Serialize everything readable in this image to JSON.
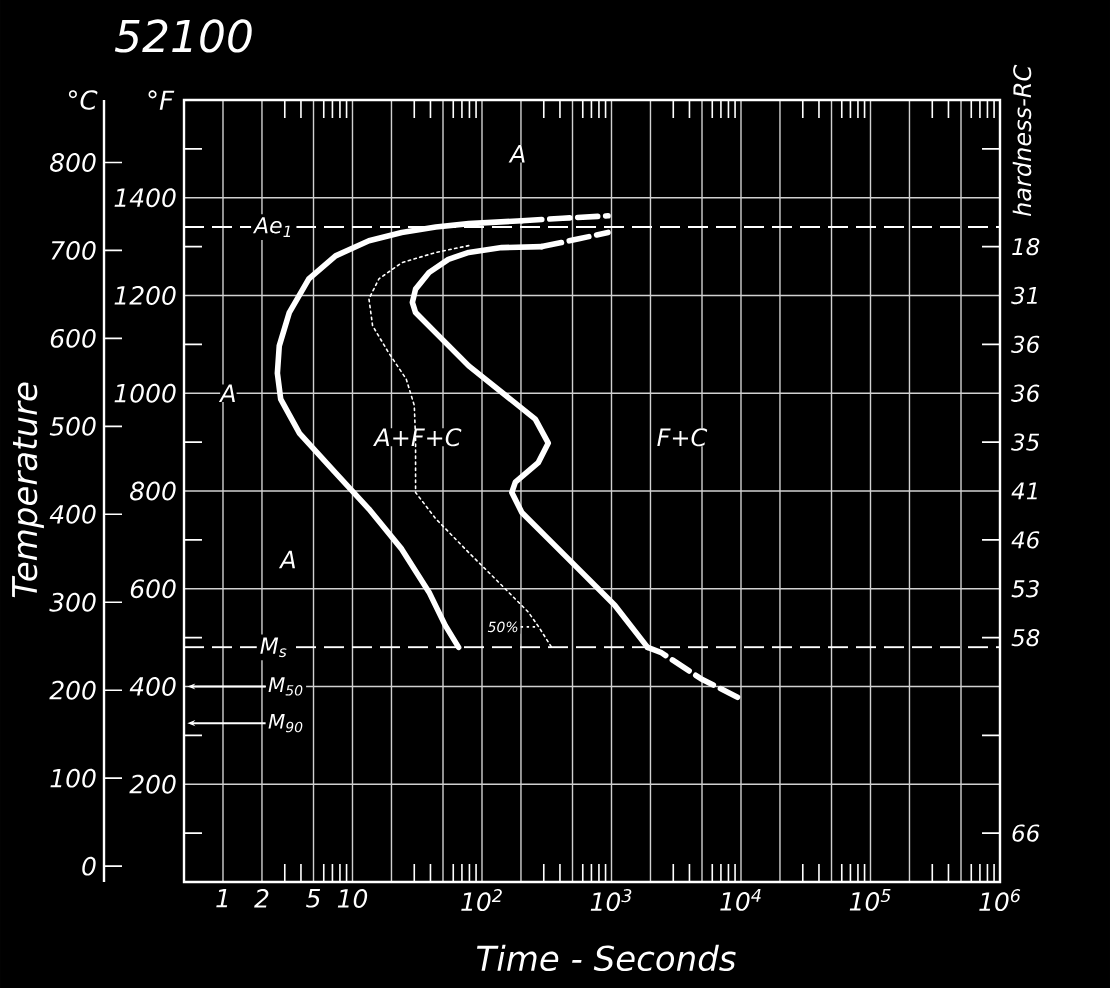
{
  "chart_data": {
    "type": "line",
    "title": "52100",
    "xlabel": "Time - Seconds",
    "ylabel": "Temperature",
    "y2label": "hardness-RC",
    "y3label": "°C",
    "log": "x",
    "grid": true,
    "xlim": [
      0.5,
      1000000
    ],
    "ylim": [
      0,
      1600
    ],
    "y3lim": [
      -18,
      871
    ],
    "xticks": [
      1,
      2,
      5,
      10,
      {
        "value": 20,
        "label": null
      },
      {
        "value": 50,
        "label": null
      },
      {
        "value": 100,
        "label": "10$^{2}$"
      },
      {
        "value": 200,
        "label": null
      },
      {
        "value": 500,
        "label": null
      },
      {
        "value": 1000,
        "label": "10$^{3}$"
      },
      {
        "value": 2000,
        "label": null
      },
      {
        "value": 5000,
        "label": null
      },
      {
        "value": 10000,
        "label": "10$^{4}$"
      },
      {
        "value": 20000,
        "label": null
      },
      {
        "value": 50000,
        "label": null
      },
      {
        "value": 100000,
        "label": "10$^{5}$"
      },
      {
        "value": 200000,
        "label": null
      },
      {
        "value": 500000,
        "label": null
      },
      {
        "value": 1000000,
        "label": "10$^{6}$"
      }
    ],
    "yticks": [
      {
        "value": 0,
        "label": null
      },
      200,
      400,
      600,
      800,
      1000,
      1200,
      1400,
      {
        "value": 1600,
        "label": null
      }
    ],
    "y3ticks": [
      0,
      100,
      200,
      300,
      400,
      500,
      600,
      700,
      800
    ],
    "y2_categories": [
      null,
      null,
      null,
      "18",
      "31",
      "36",
      "36",
      "35",
      "41",
      "46",
      "53",
      "58",
      null,
      null,
      null,
      "66",
      null
    ],
    "series": [
      {
        "color": "#ffffff",
        "line_style": "solid",
        "x": [
          203,
          79,
          44,
          24,
          13.4,
          7.4,
          4.6,
          3.25,
          2.72,
          2.63,
          2.79,
          3.9,
          7.4,
          13.4,
          24,
          39,
          52,
          66
        ],
        "values": [
          1353,
          1347,
          1340,
          1329,
          1312,
          1281,
          1234,
          1165,
          1097,
          1041,
          988,
          918,
          837,
          763,
          681,
          593,
          525,
          480
        ]
      },
      {
        "color": "#ffffff",
        "line_style": "dashed",
        "x": [
          203,
          420,
          940
        ],
        "values": [
          1353,
          1358,
          1363
        ]
      },
      {
        "color": "#ffffff",
        "line_style": "dashed",
        "x": [
          290,
          560,
          940
        ],
        "values": [
          1300,
          1316,
          1329
        ]
      },
      {
        "color": "#ffffff",
        "line_style": "solid",
        "x": [
          290,
          142,
          79,
          55,
          39,
          30.7,
          29,
          30.7,
          43.8,
          79,
          142,
          258,
          325,
          272,
          181,
          170,
          203,
          325,
          588,
          1060,
          1900
        ],
        "values": [
          1300,
          1298,
          1288,
          1274,
          1247,
          1213,
          1186,
          1165,
          1124,
          1056,
          1002,
          947,
          898,
          858,
          818,
          797,
          756,
          702,
          634,
          566,
          480
        ]
      },
      {
        "color": "#ffffff",
        "line_style": "dashed",
        "x": [
          1900,
          2400,
          4900,
          9400
        ],
        "values": [
          480,
          470,
          416,
          378
        ]
      },
      {
        "name": "50%",
        "color": "#ffffff",
        "line_style": "dotted",
        "x": [
          79,
          44,
          24,
          16,
          13.4,
          14.3,
          19,
          26,
          30,
          30.7,
          30.7,
          44,
          79,
          142,
          228,
          274,
          345
        ],
        "values": [
          1302,
          1288,
          1267,
          1234,
          1193,
          1138,
          1083,
          1029,
          975,
          906,
          797,
          743,
          674,
          607,
          552,
          522,
          480
        ]
      }
    ],
    "ref_lines": [
      {
        "axis": "y",
        "value": 1340,
        "label": "Ae$_{1}$",
        "line_style": "dashed"
      },
      {
        "axis": "y",
        "value": 480,
        "label": "M$_{s}$",
        "line_style": "dashed"
      },
      {
        "axis": "y",
        "value": 400,
        "label": "M$_{50}$",
        "line_style": "solid"
      },
      {
        "axis": "y",
        "value": 325,
        "label": "M$_{90}$",
        "line_style": "solid"
      }
    ],
    "annotations": [
      {
        "text": "A",
        "x": 190,
        "y": 1490
      },
      {
        "text": "A",
        "x": 1.1,
        "y": 1000
      },
      {
        "text": "A",
        "x": 3.2,
        "y": 660
      },
      {
        "text": "A+F+C",
        "x": 32,
        "y": 910
      },
      {
        "text": "F+C",
        "x": 3500,
        "y": 910
      },
      "°F"
    ]
  }
}
